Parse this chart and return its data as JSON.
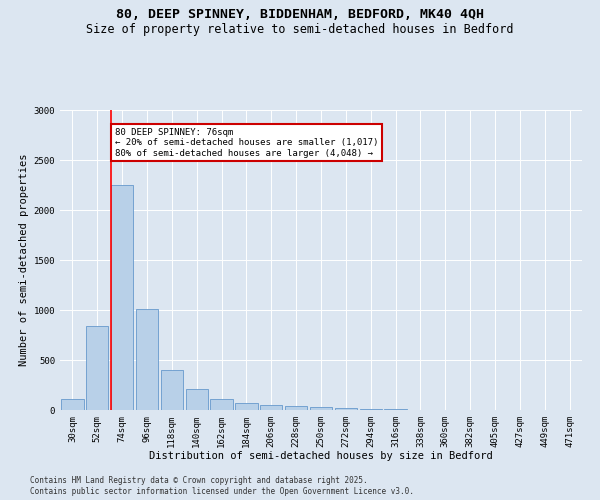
{
  "title_line1": "80, DEEP SPINNEY, BIDDENHAM, BEDFORD, MK40 4QH",
  "title_line2": "Size of property relative to semi-detached houses in Bedford",
  "xlabel": "Distribution of semi-detached houses by size in Bedford",
  "ylabel": "Number of semi-detached properties",
  "categories": [
    "30sqm",
    "52sqm",
    "74sqm",
    "96sqm",
    "118sqm",
    "140sqm",
    "162sqm",
    "184sqm",
    "206sqm",
    "228sqm",
    "250sqm",
    "272sqm",
    "294sqm",
    "316sqm",
    "338sqm",
    "360sqm",
    "382sqm",
    "405sqm",
    "427sqm",
    "449sqm",
    "471sqm"
  ],
  "values": [
    110,
    840,
    2250,
    1010,
    400,
    210,
    115,
    75,
    55,
    40,
    30,
    20,
    15,
    8,
    5,
    3,
    2,
    2,
    1,
    1,
    1
  ],
  "bar_color": "#b8d0e8",
  "bar_edge_color": "#6699cc",
  "red_line_x": 2,
  "property_size": "76sqm",
  "property_name": "80 DEEP SPINNEY",
  "pct_smaller": "20%",
  "n_smaller": "1,017",
  "pct_larger": "80%",
  "n_larger": "4,048",
  "annotation_box_color": "#cc0000",
  "background_color": "#dce6f1",
  "plot_bg_color": "#dce6f1",
  "ylim": [
    0,
    3000
  ],
  "yticks": [
    0,
    500,
    1000,
    1500,
    2000,
    2500,
    3000
  ],
  "footnote_line1": "Contains HM Land Registry data © Crown copyright and database right 2025.",
  "footnote_line2": "Contains public sector information licensed under the Open Government Licence v3.0.",
  "title_fontsize": 9.5,
  "subtitle_fontsize": 8.5,
  "xlabel_fontsize": 7.5,
  "ylabel_fontsize": 7.5,
  "tick_fontsize": 6.5,
  "annot_fontsize": 6.5,
  "footnote_fontsize": 5.5
}
